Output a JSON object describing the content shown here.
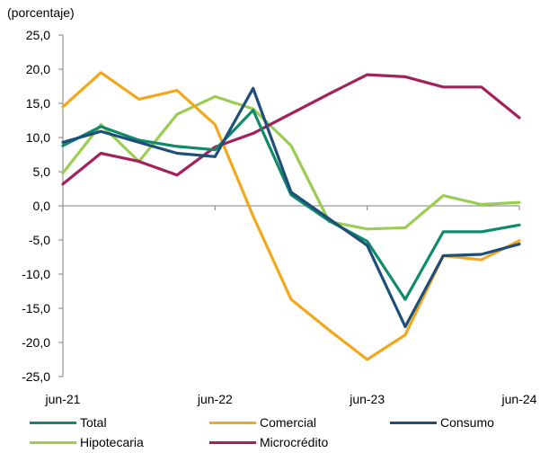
{
  "unit_label": "(porcentaje)",
  "chart_data": {
    "type": "line",
    "x": [
      "jun-21",
      "sep-21",
      "dic-21",
      "mar-22",
      "jun-22",
      "sep-22",
      "dic-22",
      "mar-23",
      "jun-23",
      "sep-23",
      "dic-23",
      "mar-24",
      "jun-24"
    ],
    "xticks": [
      "jun-21",
      "jun-22",
      "jun-23",
      "jun-24"
    ],
    "ylim": [
      -25,
      25
    ],
    "yticks": [
      "25,0",
      "20,0",
      "15,0",
      "10,0",
      "5,0",
      "0,0",
      "-5,0",
      "-10,0",
      "-15,0",
      "-20,0",
      "-25,0"
    ],
    "grid": false,
    "legend_position": "bottom",
    "series": [
      {
        "name": "Total",
        "color": "#0f8a6b",
        "values": [
          8.8,
          11.6,
          9.6,
          8.7,
          8.2,
          14.0,
          1.6,
          -2.2,
          -5.2,
          -13.7,
          -3.8,
          -3.8,
          -2.8
        ]
      },
      {
        "name": "Comercial",
        "color": "#f2a81d",
        "values": [
          14.5,
          19.5,
          15.6,
          16.9,
          11.9,
          -1.5,
          -13.7,
          -18.2,
          -22.5,
          -18.9,
          -7.3,
          -7.9,
          -5.1
        ]
      },
      {
        "name": "Consumo",
        "color": "#1f4e79",
        "values": [
          9.3,
          10.9,
          9.3,
          7.7,
          7.2,
          17.2,
          2.0,
          -1.9,
          -5.8,
          -17.7,
          -7.3,
          -7.1,
          -5.6
        ]
      },
      {
        "name": "Hipotecaria",
        "color": "#9acd52",
        "values": [
          4.8,
          11.9,
          6.5,
          13.4,
          16.0,
          14.2,
          8.8,
          -2.3,
          -3.4,
          -3.2,
          1.5,
          0.2,
          0.5
        ]
      },
      {
        "name": "Microcrédito",
        "color": "#a3215a",
        "values": [
          3.2,
          7.7,
          6.5,
          4.5,
          8.6,
          10.6,
          13.5,
          16.4,
          19.2,
          18.9,
          17.4,
          17.4,
          12.9
        ]
      }
    ]
  }
}
